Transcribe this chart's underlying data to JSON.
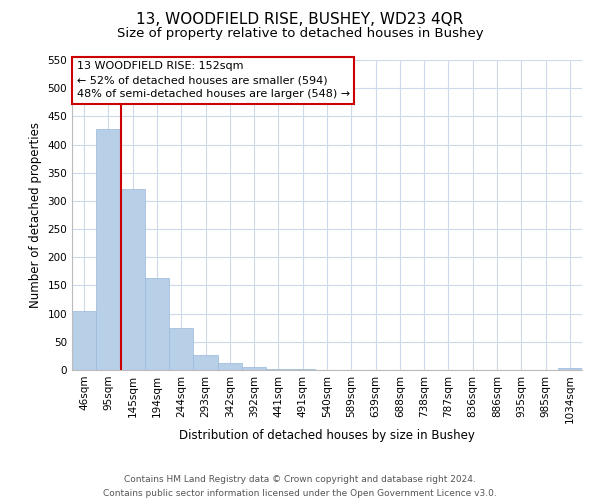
{
  "title": "13, WOODFIELD RISE, BUSHEY, WD23 4QR",
  "subtitle": "Size of property relative to detached houses in Bushey",
  "xlabel": "Distribution of detached houses by size in Bushey",
  "ylabel": "Number of detached properties",
  "bar_labels": [
    "46sqm",
    "95sqm",
    "145sqm",
    "194sqm",
    "244sqm",
    "293sqm",
    "342sqm",
    "392sqm",
    "441sqm",
    "491sqm",
    "540sqm",
    "589sqm",
    "639sqm",
    "688sqm",
    "738sqm",
    "787sqm",
    "836sqm",
    "886sqm",
    "935sqm",
    "985sqm",
    "1034sqm"
  ],
  "bar_values": [
    105,
    428,
    322,
    163,
    75,
    27,
    13,
    5,
    2,
    1,
    0,
    0,
    0,
    0,
    0,
    0,
    0,
    0,
    0,
    0,
    3
  ],
  "bar_color": "#b8cfe8",
  "bar_edge_color": "#9ab8d8",
  "vline_x_idx": 2,
  "vline_color": "#cc0000",
  "ylim": [
    0,
    550
  ],
  "yticks": [
    0,
    50,
    100,
    150,
    200,
    250,
    300,
    350,
    400,
    450,
    500,
    550
  ],
  "annotation_line1": "13 WOODFIELD RISE: 152sqm",
  "annotation_line2": "← 52% of detached houses are smaller (594)",
  "annotation_line3": "48% of semi-detached houses are larger (548) →",
  "annotation_box_color": "#ffffff",
  "annotation_box_edge": "#cc0000",
  "footer_line1": "Contains HM Land Registry data © Crown copyright and database right 2024.",
  "footer_line2": "Contains public sector information licensed under the Open Government Licence v3.0.",
  "background_color": "#ffffff",
  "grid_color": "#ccdaeb",
  "title_fontsize": 11,
  "subtitle_fontsize": 9.5,
  "axis_label_fontsize": 8.5,
  "tick_fontsize": 7.5,
  "annotation_fontsize": 8,
  "footer_fontsize": 6.5
}
